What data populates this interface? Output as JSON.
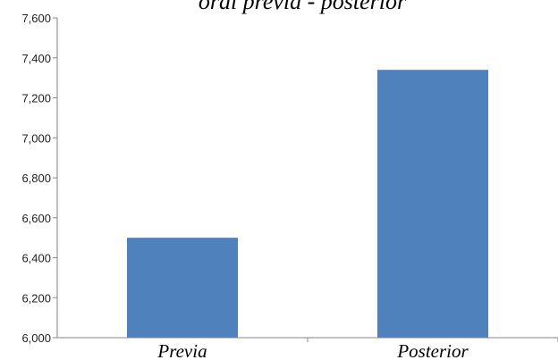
{
  "chart_data": {
    "type": "bar",
    "title": "oral previa - posterior",
    "categories": [
      "Previa",
      "Posterior"
    ],
    "values": [
      6500,
      7340
    ],
    "ylim": [
      6000,
      7600
    ],
    "yticks": [
      6000,
      6200,
      6400,
      6600,
      6800,
      7000,
      7200,
      7400,
      7600
    ],
    "ytick_labels": [
      "6,000",
      "6,200",
      "6,400",
      "6,600",
      "6,800",
      "7,000",
      "7,200",
      "7,400",
      "7,600"
    ],
    "xlabel": "",
    "ylabel": "",
    "grid": false,
    "legend": "none",
    "bar_color": "#4f81bd"
  }
}
